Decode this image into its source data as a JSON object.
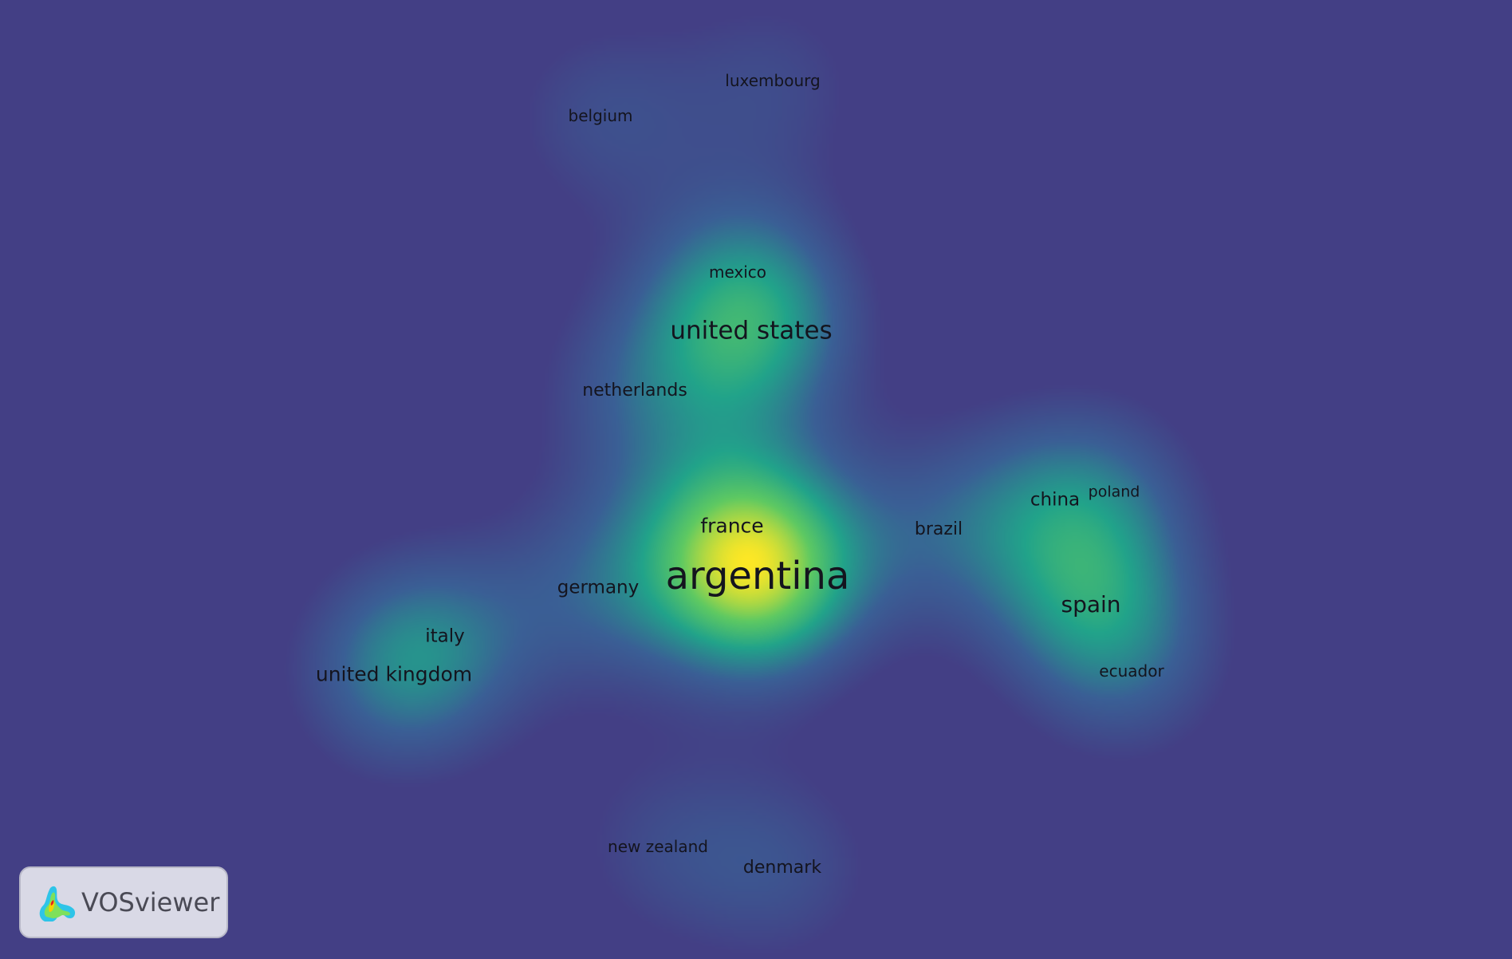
{
  "app": {
    "name": "VOSviewer",
    "view": "density visualization"
  },
  "colors": {
    "background": "#433f85",
    "low": "#3a5f95",
    "mid": "#21a38a",
    "high": "#fde725",
    "label": "#14141e"
  },
  "nodes": [
    {
      "label": "argentina",
      "weight": 1.0
    },
    {
      "label": "united states",
      "weight": 0.62
    },
    {
      "label": "france",
      "weight": 0.38
    },
    {
      "label": "spain",
      "weight": 0.5
    },
    {
      "label": "united kingdom",
      "weight": 0.46
    },
    {
      "label": "germany",
      "weight": 0.36
    },
    {
      "label": "netherlands",
      "weight": 0.34
    },
    {
      "label": "china",
      "weight": 0.34
    },
    {
      "label": "italy",
      "weight": 0.3
    },
    {
      "label": "brazil",
      "weight": 0.32
    },
    {
      "label": "belgium",
      "weight": 0.3
    },
    {
      "label": "luxembourg",
      "weight": 0.26
    },
    {
      "label": "mexico",
      "weight": 0.28
    },
    {
      "label": "poland",
      "weight": 0.22
    },
    {
      "label": "ecuador",
      "weight": 0.26
    },
    {
      "label": "denmark",
      "weight": 0.3
    },
    {
      "label": "new zealand",
      "weight": 0.24
    }
  ]
}
